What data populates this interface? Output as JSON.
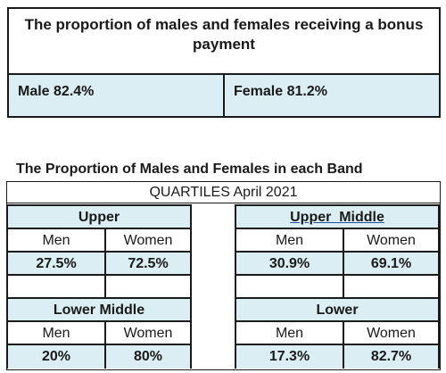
{
  "bonus": {
    "title": "The proportion of males and females receiving a bonus payment",
    "male": "Male 82.4%",
    "female": "Female 81.2%"
  },
  "bands": {
    "heading": "The Proportion of Males and Females in each Band",
    "quartiles_label": "QUARTILES April 2021",
    "col_men": "Men",
    "col_women": "Women",
    "upper": {
      "label": "Upper",
      "men": "27.5%",
      "women": "72.5%"
    },
    "upper_middle": {
      "label": "Upper  Middle",
      "men": "30.9%",
      "women": "69.1%"
    },
    "lower_middle": {
      "label": "Lower Middle",
      "men": "20%",
      "women": "80%"
    },
    "lower": {
      "label": "Lower",
      "men": "17.3%",
      "women": "82.7%"
    }
  },
  "colors": {
    "cell_fill": "#daeef3",
    "border": "#1a1a1a"
  }
}
